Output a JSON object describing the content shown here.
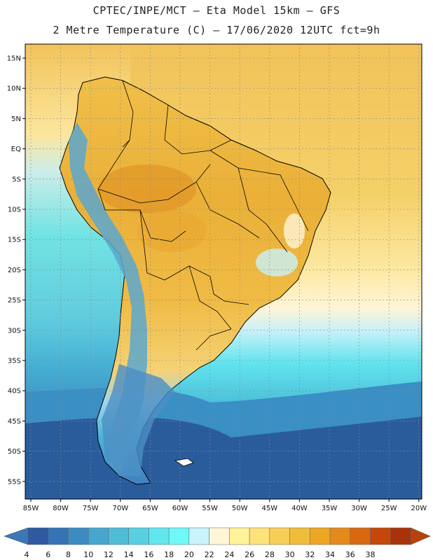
{
  "title": {
    "line1": "CPTEC/INPE/MCT –  Eta Model 15km – GFS",
    "line2": "2 Metre Temperature (C) – 17/06/2020 12UTC fct=9h"
  },
  "axes": {
    "lat_labels": [
      "15N",
      "10N",
      "5N",
      "EQ",
      "5S",
      "10S",
      "15S",
      "20S",
      "25S",
      "30S",
      "35S",
      "40S",
      "45S",
      "50S",
      "55S"
    ],
    "lon_labels": [
      "85W",
      "80W",
      "75W",
      "70W",
      "65W",
      "60W",
      "55W",
      "50W",
      "45W",
      "40W",
      "35W",
      "30W",
      "25W",
      "20W"
    ]
  },
  "colorbar": {
    "labels": [
      "4",
      "6",
      "8",
      "10",
      "12",
      "14",
      "16",
      "18",
      "20",
      "22",
      "24",
      "26",
      "28",
      "30",
      "32",
      "34",
      "36",
      "38"
    ],
    "colors": [
      "#2d5aa0",
      "#3473b5",
      "#3c8cc4",
      "#46a6cf",
      "#4fbcd8",
      "#58d0e2",
      "#62e6ee",
      "#6ff8f8",
      "#c8f4fb",
      "#fff6d8",
      "#fff29a",
      "#fde27a",
      "#f7cf58",
      "#efbc3c",
      "#eda723",
      "#e48a1a",
      "#d86810",
      "#c5480a",
      "#a8330a"
    ],
    "under_color": "#3a78b8",
    "over_color": "#b8420c"
  },
  "map": {
    "ocean_colors": {
      "warm_north": "#f4d068",
      "pale_north": "#fde9a4",
      "cream": "#fff5d6",
      "light_cyan": "#c8f1f8",
      "cyan": "#62e4ee",
      "mid_cyan": "#4fc4dc",
      "blue": "#3a8fc4",
      "deep_blue": "#2a5c9c"
    },
    "land_colors": {
      "hot": "#e9a830",
      "warm": "#f1bf48",
      "andes_cold": "#5aa7cf",
      "patagonia": "#4b8fc4"
    }
  }
}
